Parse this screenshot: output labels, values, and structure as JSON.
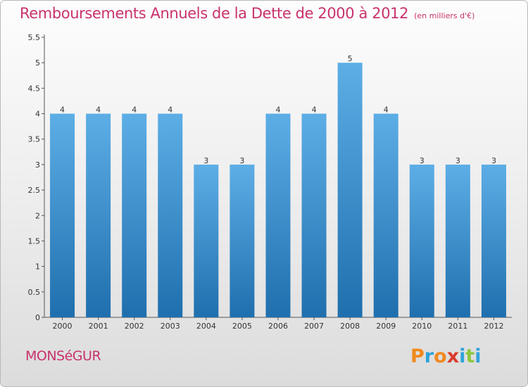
{
  "title": "Remboursements Annuels de la Dette de 2000 à 2012",
  "unit": "(en milliers d'€)",
  "city": "MONSéGUR",
  "brand": {
    "text": "Proxiti",
    "letter_colors": [
      "#f08a1e",
      "#2ea3db",
      "#f08a1e",
      "#d93b2c",
      "#2ea3db",
      "#8cc63f",
      "#2ea3db"
    ]
  },
  "colors": {
    "accent": "#c8326d",
    "bar_top": "#5daee6",
    "bar_bottom": "#1f6fae",
    "axis": "#555555"
  },
  "chart_data": {
    "type": "bar",
    "title": "Remboursements Annuels de la Dette de 2000 à 2012",
    "subtitle": "(en milliers d'€)",
    "categories": [
      "2000",
      "2001",
      "2002",
      "2003",
      "2004",
      "2005",
      "2006",
      "2007",
      "2008",
      "2009",
      "2010",
      "2011",
      "2012"
    ],
    "values": [
      4,
      4,
      4,
      4,
      3,
      3,
      4,
      4,
      5,
      4,
      3,
      3,
      3
    ],
    "data_labels": [
      "4",
      "4",
      "4",
      "4",
      "3",
      "3",
      "4",
      "4",
      "5",
      "4",
      "3",
      "3",
      "3"
    ],
    "ylim": [
      0,
      5.5
    ],
    "yticks": [
      0,
      0.5,
      1,
      1.5,
      2,
      2.5,
      3,
      3.5,
      4,
      4.5,
      5,
      5.5
    ],
    "ytick_labels": [
      "0",
      "0.5",
      "1",
      "1.5",
      "2",
      "2.5",
      "3",
      "3.5",
      "4",
      "4.5",
      "5",
      "5.5"
    ],
    "xlabel": "",
    "ylabel": "",
    "grid": false,
    "legend": "none"
  }
}
